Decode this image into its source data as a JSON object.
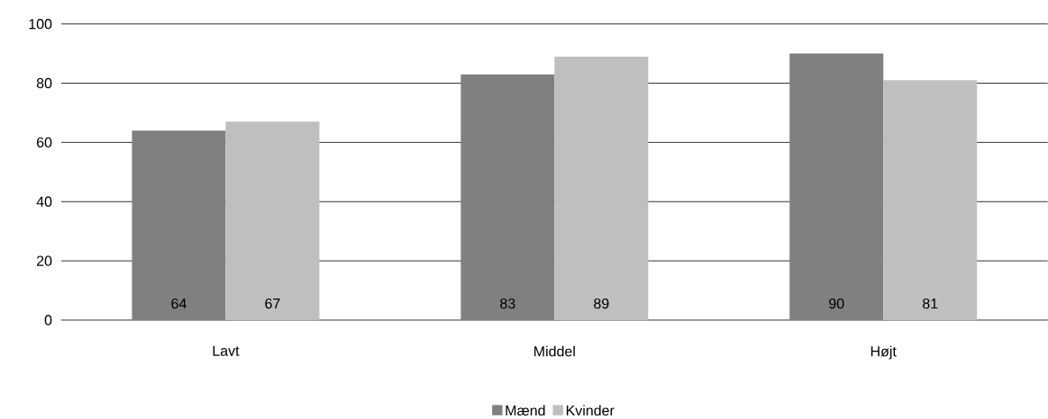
{
  "chart_data": {
    "type": "bar",
    "categories": [
      "Lavt",
      "Middel",
      "Højt"
    ],
    "series": [
      {
        "name": "Mænd",
        "color": "#808080",
        "values": [
          64,
          83,
          90
        ]
      },
      {
        "name": "Kvinder",
        "color": "#bfbfbf",
        "values": [
          67,
          89,
          81
        ]
      }
    ],
    "ylim": [
      0,
      100
    ],
    "yticks": [
      0,
      20,
      40,
      60,
      80,
      100
    ],
    "grid": "y",
    "legend": "bottom",
    "data_labels": true
  }
}
